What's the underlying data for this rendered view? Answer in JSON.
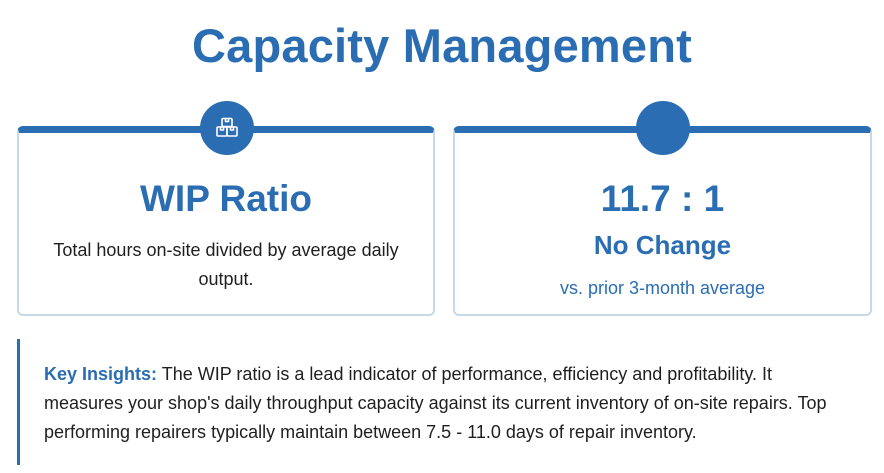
{
  "page": {
    "title": "Capacity Management"
  },
  "wip_card": {
    "icon": "boxes-icon",
    "title": "WIP Ratio",
    "description": "Total hours on-site divided by average daily output."
  },
  "ratio_card": {
    "icon": "none",
    "value": "11.7 : 1",
    "change": "No Change",
    "comparison": "vs. prior 3-month average"
  },
  "insights": {
    "label": "Key Insights",
    "separator": ":",
    "text": " The WIP ratio is a lead indicator of performance, efficiency and profitability. It measures your shop's daily throughput capacity against its current inventory of on-site repairs. Top performing repairers typically maintain between 7.5 - 11.0 days of repair inventory."
  },
  "colors": {
    "accent": "#2a6db3",
    "card_border": "#c7d8e6",
    "text": "#1f1f1f"
  }
}
